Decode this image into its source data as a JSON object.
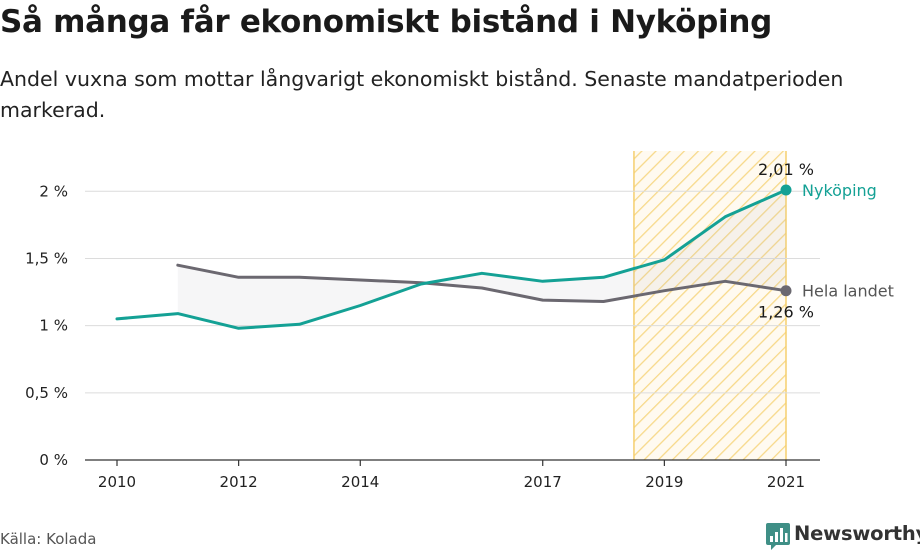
{
  "title": "Så många får ekonomiskt bistånd i Nyköping",
  "subtitle": "Andel vuxna som mottar långvarigt ekonomiskt bistånd. Senaste mandatperioden markerad.",
  "source": "Källa: Kolada",
  "brand": "Newsworthy",
  "chart_data": {
    "type": "line",
    "ylim": [
      0,
      2.3
    ],
    "xlim": [
      2010,
      2021
    ],
    "y_ticks": [
      {
        "value": 0,
        "label": "0 %"
      },
      {
        "value": 0.5,
        "label": "0,5 %"
      },
      {
        "value": 1,
        "label": "1 %"
      },
      {
        "value": 1.5,
        "label": "1,5 %"
      },
      {
        "value": 2,
        "label": "2 %"
      }
    ],
    "x_ticks": [
      {
        "value": 2010,
        "label": "2010"
      },
      {
        "value": 2012,
        "label": "2012"
      },
      {
        "value": 2014,
        "label": "2014"
      },
      {
        "value": 2017,
        "label": "2017"
      },
      {
        "value": 2019,
        "label": "2019"
      },
      {
        "value": 2021,
        "label": "2021"
      }
    ],
    "highlight_period": [
      2018.5,
      2021
    ],
    "grid": true,
    "series": [
      {
        "name": "Nyköping",
        "color": "#14a195",
        "x": [
          2010,
          2011,
          2012,
          2013,
          2014,
          2015,
          2016,
          2017,
          2018,
          2019,
          2020,
          2021
        ],
        "values": [
          1.05,
          1.09,
          0.98,
          1.01,
          1.15,
          1.31,
          1.39,
          1.33,
          1.36,
          1.49,
          1.81,
          2.01
        ],
        "end_value_label": "2,01 %"
      },
      {
        "name": "Hela landet",
        "color": "#6b6870",
        "x": [
          2011,
          2012,
          2013,
          2014,
          2015,
          2016,
          2017,
          2018,
          2019,
          2020,
          2021
        ],
        "values": [
          1.45,
          1.36,
          1.36,
          1.34,
          1.32,
          1.28,
          1.19,
          1.18,
          1.26,
          1.33,
          1.26
        ],
        "end_value_label": "1,26 %"
      }
    ]
  }
}
